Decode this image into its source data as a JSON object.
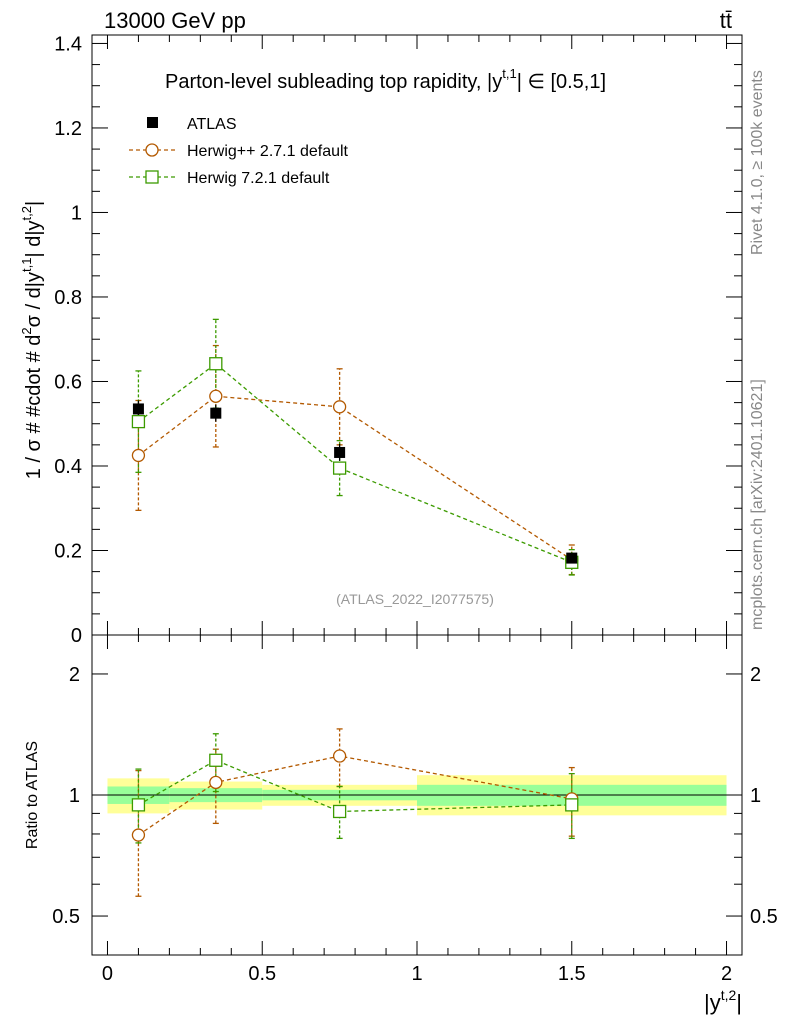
{
  "header": {
    "energy_label": "13000 GeV pp",
    "process_label": "tt̄"
  },
  "side_labels": {
    "rivet": "Rivet 4.1.0, ≥ 100k events",
    "source": "mcplots.cern.ch [arXiv:2401.10621]"
  },
  "colors": {
    "atlas": "#000000",
    "herwigpp": "#b35900",
    "herwig7": "#3c9b00",
    "band_green": "#99ff99",
    "band_yellow": "#ffff99"
  },
  "chart_data": [
    {
      "type": "scatter",
      "title": "Parton-level subleading top rapidity, |y^{t,1}| ∈ [0.5,1]",
      "title_parts": {
        "main": "Parton-level subleading top rapidity, |y",
        "sup": "t,1",
        "tail": "| ∈ [0.5,1]"
      },
      "ylabel": "1 / σ # #cdot # d²σ / d|y^{t,1}| d|y^{t,2}|",
      "ylabel_parts": {
        "p1": "1 / σ # #cdot # d",
        "s1": "2",
        "p2": "σ / d|y",
        "s2": "t,1",
        "p3": "| d|y",
        "s3": "t,2",
        "p4": "|"
      },
      "watermark": "(ATLAS_2022_I2077575)",
      "xlim": [
        -0.05,
        2.05
      ],
      "ylim": [
        0,
        1.42
      ],
      "yticks": [
        0,
        0.2,
        0.4,
        0.6,
        0.8,
        1,
        1.2,
        1.4
      ],
      "ytick_labels": [
        "0",
        "0.2",
        "0.4",
        "0.6",
        "0.8",
        "1",
        "1.2",
        "1.4"
      ],
      "x_bins": [
        [
          0,
          0.2
        ],
        [
          0.2,
          0.5
        ],
        [
          0.5,
          1
        ],
        [
          1,
          2
        ]
      ],
      "legend": {
        "position": "top-left",
        "entries": [
          "ATLAS",
          "Herwig++ 2.7.1 default",
          "Herwig 7.2.1 default"
        ]
      },
      "series": [
        {
          "name": "ATLAS",
          "marker": "filled-square",
          "x": [
            0.1,
            0.35,
            0.75,
            1.5
          ],
          "y": [
            0.535,
            0.525,
            0.432,
            0.182
          ],
          "yerr": [
            0.02,
            0.02,
            0.02,
            0.01
          ]
        },
        {
          "name": "Herwig++ 2.7.1 default",
          "marker": "open-circle",
          "x": [
            0.1,
            0.35,
            0.75,
            1.5
          ],
          "y": [
            0.425,
            0.565,
            0.54,
            0.178
          ],
          "yerr": [
            0.13,
            0.12,
            0.09,
            0.035
          ]
        },
        {
          "name": "Herwig 7.2.1 default",
          "marker": "open-square",
          "x": [
            0.1,
            0.35,
            0.75,
            1.5
          ],
          "y": [
            0.505,
            0.642,
            0.395,
            0.172
          ],
          "yerr": [
            0.12,
            0.105,
            0.065,
            0.03
          ]
        }
      ]
    },
    {
      "type": "scatter",
      "ylabel": "Ratio to ATLAS",
      "xlabel": "|y^{t,2}|",
      "xlabel_parts": {
        "main": "|y",
        "sup": "t,2",
        "tail": "|"
      },
      "scale": "log",
      "ylim": [
        0.4,
        2.5
      ],
      "yticks": [
        0.5,
        1,
        2
      ],
      "ytick_labels": [
        "0.5",
        "1",
        "2"
      ],
      "xticks": [
        0,
        0.5,
        1,
        1.5,
        2
      ],
      "xtick_labels": [
        "0",
        "0.5",
        "1",
        "1.5",
        "2"
      ],
      "bands": [
        {
          "x": [
            0,
            0.2
          ],
          "green": [
            0.95,
            1.05
          ],
          "yellow": [
            0.9,
            1.1
          ]
        },
        {
          "x": [
            0.2,
            0.5
          ],
          "green": [
            0.96,
            1.04
          ],
          "yellow": [
            0.92,
            1.08
          ]
        },
        {
          "x": [
            0.5,
            1
          ],
          "green": [
            0.97,
            1.03
          ],
          "yellow": [
            0.94,
            1.06
          ]
        },
        {
          "x": [
            1,
            2
          ],
          "green": [
            0.94,
            1.06
          ],
          "yellow": [
            0.89,
            1.12
          ]
        }
      ],
      "series": [
        {
          "name": "Herwig++ 2.7.1 default",
          "marker": "open-circle",
          "x": [
            0.1,
            0.35,
            0.75,
            1.5
          ],
          "y": [
            0.795,
            1.075,
            1.25,
            0.978
          ],
          "ylo": [
            0.56,
            0.85,
            1.05,
            0.79
          ],
          "yhi": [
            1.15,
            1.3,
            1.46,
            1.17
          ]
        },
        {
          "name": "Herwig 7.2.1 default",
          "marker": "open-square",
          "x": [
            0.1,
            0.35,
            0.75,
            1.5
          ],
          "y": [
            0.945,
            1.22,
            0.91,
            0.945
          ],
          "ylo": [
            0.76,
            1.02,
            0.78,
            0.78
          ],
          "yhi": [
            1.16,
            1.42,
            1.05,
            1.13
          ]
        }
      ]
    }
  ]
}
